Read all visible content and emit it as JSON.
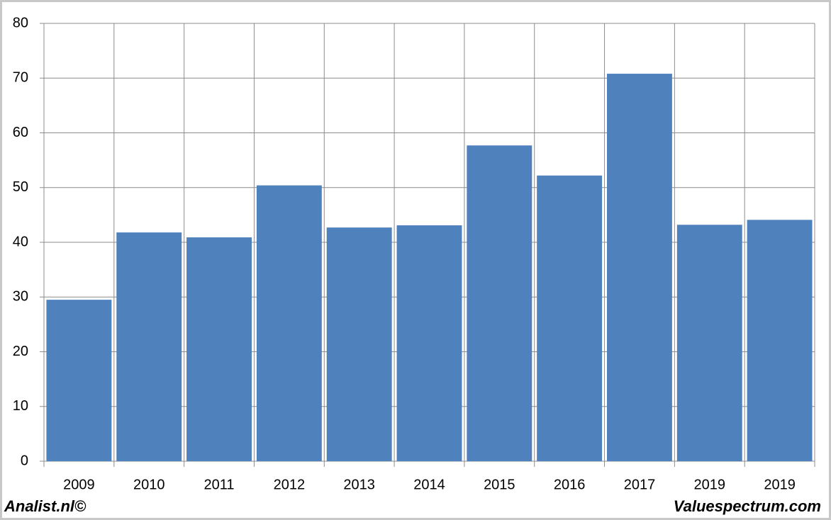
{
  "chart_data": {
    "type": "bar",
    "categories": [
      "2009",
      "2010",
      "2011",
      "2012",
      "2013",
      "2014",
      "2015",
      "2016",
      "2017",
      "2019",
      "2019"
    ],
    "values": [
      29.5,
      41.8,
      40.9,
      50.4,
      42.7,
      43.1,
      57.7,
      52.2,
      70.8,
      43.2,
      44.1
    ],
    "color": "#4f81bd",
    "ylim": [
      0,
      80
    ],
    "yticks": [
      0,
      10,
      20,
      30,
      40,
      50,
      60,
      70,
      80
    ],
    "grid": true
  },
  "footer": {
    "left": "Analist.nl©",
    "right": "Valuespectrum.com"
  }
}
